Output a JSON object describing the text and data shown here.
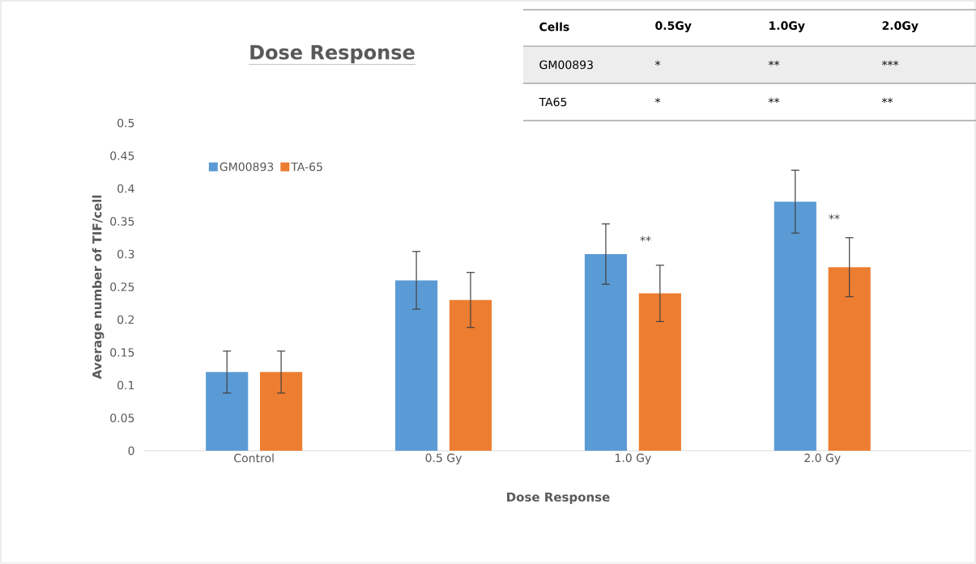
{
  "chart_data": {
    "type": "bar",
    "title": "Dose Response",
    "xlabel": "Dose Response",
    "ylabel": "Average number of TIF/cell",
    "categories": [
      "Control",
      "0.5 Gy",
      "1.0 Gy",
      "2.0 Gy"
    ],
    "series": [
      {
        "name": "GM00893",
        "color": "#5b9bd5",
        "values": [
          0.12,
          0.26,
          0.3,
          0.38
        ],
        "errors": [
          0.032,
          0.044,
          0.046,
          0.048
        ]
      },
      {
        "name": "TA-65",
        "color": "#ed7d31",
        "values": [
          0.12,
          0.23,
          0.24,
          0.28
        ],
        "errors": [
          0.032,
          0.042,
          0.043,
          0.045
        ]
      }
    ],
    "ylim": [
      0,
      0.5
    ],
    "yticks": [
      0,
      0.05,
      0.1,
      0.15,
      0.2,
      0.25,
      0.3,
      0.35,
      0.4,
      0.45,
      0.5
    ],
    "grid": false,
    "legend": "top left",
    "annotations": [
      "Cells",
      "0.5Gy",
      "1.0Gy",
      "2.0Gy",
      "GM00893",
      "*",
      "**",
      "***",
      "TA65",
      "*",
      "**",
      "**",
      "**",
      "**"
    ]
  }
}
